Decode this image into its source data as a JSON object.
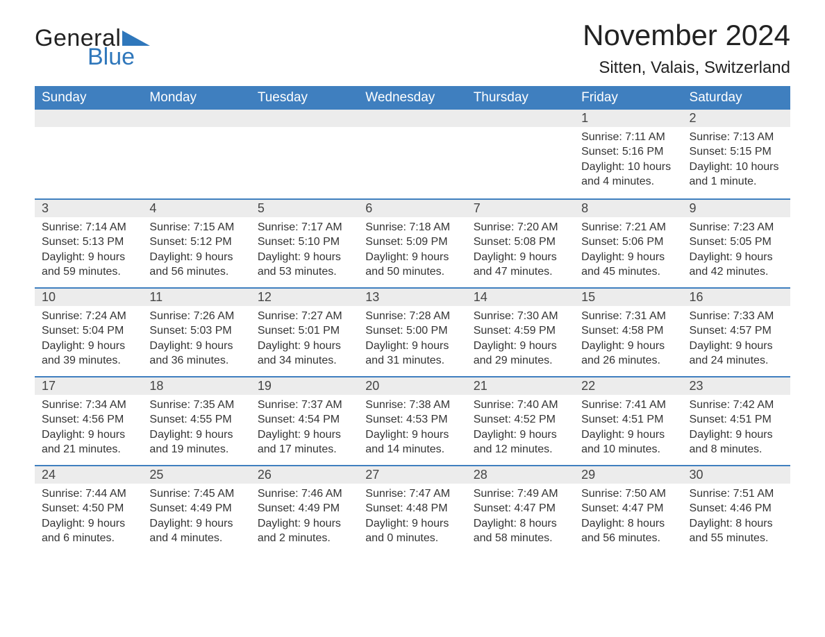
{
  "brand": {
    "part1": "General",
    "part2": "Blue",
    "accent_color": "#2f77bb"
  },
  "header": {
    "month_title": "November 2024",
    "location": "Sitten, Valais, Switzerland"
  },
  "colors": {
    "header_bg": "#3f7fbf",
    "header_text": "#ffffff",
    "daybar_bg": "#ececec",
    "daybar_border": "#3f7fbf",
    "body_text": "#333333",
    "page_bg": "#ffffff"
  },
  "typography": {
    "month_title_pt": 42,
    "location_pt": 24,
    "dayheader_pt": 19,
    "daynum_pt": 18,
    "body_pt": 16
  },
  "layout": {
    "columns": 7,
    "rows": 5,
    "first_day_column_index": 5
  },
  "day_headers": [
    "Sunday",
    "Monday",
    "Tuesday",
    "Wednesday",
    "Thursday",
    "Friday",
    "Saturday"
  ],
  "labels": {
    "sunrise": "Sunrise:",
    "sunset": "Sunset:",
    "daylight": "Daylight:"
  },
  "days": [
    {
      "n": 1,
      "sunrise": "7:11 AM",
      "sunset": "5:16 PM",
      "daylight": "10 hours and 4 minutes."
    },
    {
      "n": 2,
      "sunrise": "7:13 AM",
      "sunset": "5:15 PM",
      "daylight": "10 hours and 1 minute."
    },
    {
      "n": 3,
      "sunrise": "7:14 AM",
      "sunset": "5:13 PM",
      "daylight": "9 hours and 59 minutes."
    },
    {
      "n": 4,
      "sunrise": "7:15 AM",
      "sunset": "5:12 PM",
      "daylight": "9 hours and 56 minutes."
    },
    {
      "n": 5,
      "sunrise": "7:17 AM",
      "sunset": "5:10 PM",
      "daylight": "9 hours and 53 minutes."
    },
    {
      "n": 6,
      "sunrise": "7:18 AM",
      "sunset": "5:09 PM",
      "daylight": "9 hours and 50 minutes."
    },
    {
      "n": 7,
      "sunrise": "7:20 AM",
      "sunset": "5:08 PM",
      "daylight": "9 hours and 47 minutes."
    },
    {
      "n": 8,
      "sunrise": "7:21 AM",
      "sunset": "5:06 PM",
      "daylight": "9 hours and 45 minutes."
    },
    {
      "n": 9,
      "sunrise": "7:23 AM",
      "sunset": "5:05 PM",
      "daylight": "9 hours and 42 minutes."
    },
    {
      "n": 10,
      "sunrise": "7:24 AM",
      "sunset": "5:04 PM",
      "daylight": "9 hours and 39 minutes."
    },
    {
      "n": 11,
      "sunrise": "7:26 AM",
      "sunset": "5:03 PM",
      "daylight": "9 hours and 36 minutes."
    },
    {
      "n": 12,
      "sunrise": "7:27 AM",
      "sunset": "5:01 PM",
      "daylight": "9 hours and 34 minutes."
    },
    {
      "n": 13,
      "sunrise": "7:28 AM",
      "sunset": "5:00 PM",
      "daylight": "9 hours and 31 minutes."
    },
    {
      "n": 14,
      "sunrise": "7:30 AM",
      "sunset": "4:59 PM",
      "daylight": "9 hours and 29 minutes."
    },
    {
      "n": 15,
      "sunrise": "7:31 AM",
      "sunset": "4:58 PM",
      "daylight": "9 hours and 26 minutes."
    },
    {
      "n": 16,
      "sunrise": "7:33 AM",
      "sunset": "4:57 PM",
      "daylight": "9 hours and 24 minutes."
    },
    {
      "n": 17,
      "sunrise": "7:34 AM",
      "sunset": "4:56 PM",
      "daylight": "9 hours and 21 minutes."
    },
    {
      "n": 18,
      "sunrise": "7:35 AM",
      "sunset": "4:55 PM",
      "daylight": "9 hours and 19 minutes."
    },
    {
      "n": 19,
      "sunrise": "7:37 AM",
      "sunset": "4:54 PM",
      "daylight": "9 hours and 17 minutes."
    },
    {
      "n": 20,
      "sunrise": "7:38 AM",
      "sunset": "4:53 PM",
      "daylight": "9 hours and 14 minutes."
    },
    {
      "n": 21,
      "sunrise": "7:40 AM",
      "sunset": "4:52 PM",
      "daylight": "9 hours and 12 minutes."
    },
    {
      "n": 22,
      "sunrise": "7:41 AM",
      "sunset": "4:51 PM",
      "daylight": "9 hours and 10 minutes."
    },
    {
      "n": 23,
      "sunrise": "7:42 AM",
      "sunset": "4:51 PM",
      "daylight": "9 hours and 8 minutes."
    },
    {
      "n": 24,
      "sunrise": "7:44 AM",
      "sunset": "4:50 PM",
      "daylight": "9 hours and 6 minutes."
    },
    {
      "n": 25,
      "sunrise": "7:45 AM",
      "sunset": "4:49 PM",
      "daylight": "9 hours and 4 minutes."
    },
    {
      "n": 26,
      "sunrise": "7:46 AM",
      "sunset": "4:49 PM",
      "daylight": "9 hours and 2 minutes."
    },
    {
      "n": 27,
      "sunrise": "7:47 AM",
      "sunset": "4:48 PM",
      "daylight": "9 hours and 0 minutes."
    },
    {
      "n": 28,
      "sunrise": "7:49 AM",
      "sunset": "4:47 PM",
      "daylight": "8 hours and 58 minutes."
    },
    {
      "n": 29,
      "sunrise": "7:50 AM",
      "sunset": "4:47 PM",
      "daylight": "8 hours and 56 minutes."
    },
    {
      "n": 30,
      "sunrise": "7:51 AM",
      "sunset": "4:46 PM",
      "daylight": "8 hours and 55 minutes."
    }
  ]
}
